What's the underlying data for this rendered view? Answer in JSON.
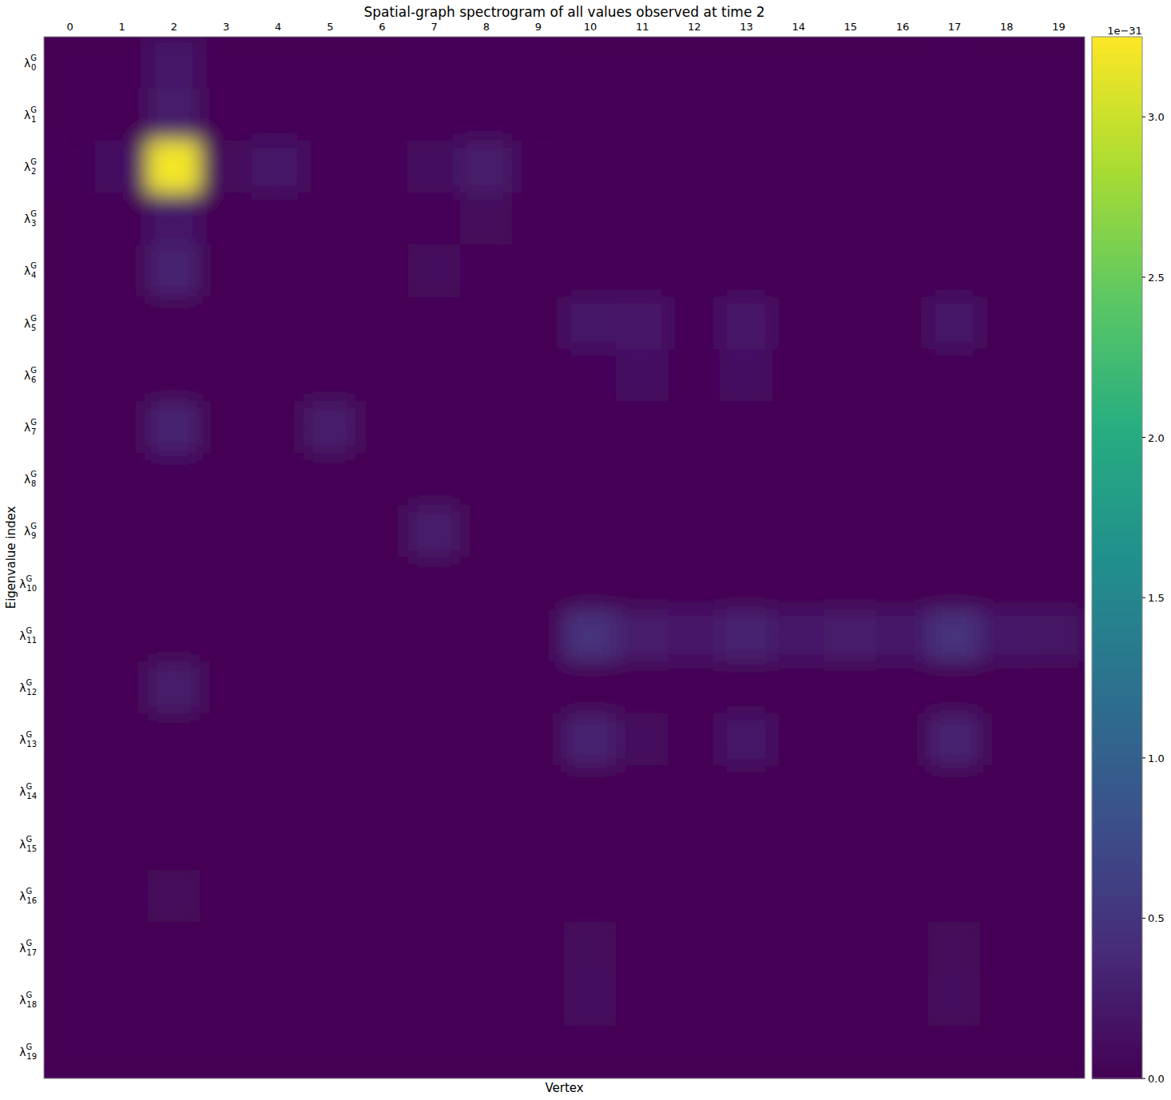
{
  "chart_data": {
    "type": "heatmap",
    "title": "Spatial-graph spectrogram of all values observed at time 2",
    "x_label": "Vertex",
    "y_label": "Eigenvalue index",
    "categories": [
      0,
      1,
      2,
      3,
      4,
      5,
      6,
      7,
      8,
      9,
      10,
      11,
      12,
      13,
      14,
      15,
      16,
      17,
      18,
      19
    ],
    "y_categories": [
      {
        "label": "λ",
        "sub": "0",
        "sup": "G"
      },
      {
        "label": "λ",
        "sub": "1",
        "sup": "G"
      },
      {
        "label": "λ",
        "sub": "2",
        "sup": "G"
      },
      {
        "label": "λ",
        "sub": "3",
        "sup": "G"
      },
      {
        "label": "λ",
        "sub": "4",
        "sup": "G"
      },
      {
        "label": "λ",
        "sub": "5",
        "sup": "G"
      },
      {
        "label": "λ",
        "sub": "6",
        "sup": "G"
      },
      {
        "label": "λ",
        "sub": "7",
        "sup": "G"
      },
      {
        "label": "λ",
        "sub": "8",
        "sup": "G"
      },
      {
        "label": "λ",
        "sub": "9",
        "sup": "G"
      },
      {
        "label": "λ",
        "sub": "10",
        "sup": "G"
      },
      {
        "label": "λ",
        "sub": "11",
        "sup": "G"
      },
      {
        "label": "λ",
        "sub": "12",
        "sup": "G"
      },
      {
        "label": "λ",
        "sub": "13",
        "sup": "G"
      },
      {
        "label": "λ",
        "sub": "14",
        "sup": "G"
      },
      {
        "label": "λ",
        "sub": "15",
        "sup": "G"
      },
      {
        "label": "λ",
        "sub": "16",
        "sup": "G"
      },
      {
        "label": "λ",
        "sub": "17",
        "sup": "G"
      },
      {
        "label": "λ",
        "sub": "18",
        "sup": "G"
      },
      {
        "label": "λ",
        "sub": "19",
        "sup": "G"
      }
    ],
    "values": [
      [
        0.01,
        0.01,
        0.2,
        0.01,
        0.01,
        0.01,
        0.01,
        0.02,
        0.02,
        0.03,
        0.01,
        0.01,
        0.01,
        0.01,
        0.01,
        0.01,
        0.01,
        0.02,
        0.01,
        0.01
      ],
      [
        0.01,
        0.01,
        0.25,
        0.01,
        0.01,
        0.01,
        0.01,
        0.02,
        0.02,
        0.02,
        0.01,
        0.01,
        0.01,
        0.01,
        0.01,
        0.01,
        0.01,
        0.02,
        0.01,
        0.01
      ],
      [
        0.05,
        0.15,
        3.2,
        0.08,
        0.2,
        0.03,
        0.02,
        0.12,
        0.25,
        0.04,
        0.01,
        0.01,
        0.01,
        0.01,
        0.01,
        0.01,
        0.01,
        0.01,
        0.01,
        0.01
      ],
      [
        0.01,
        0.01,
        0.2,
        0.01,
        0.02,
        0.01,
        0.01,
        0.02,
        0.08,
        0.01,
        0.01,
        0.01,
        0.01,
        0.01,
        0.01,
        0.01,
        0.01,
        0.01,
        0.01,
        0.01
      ],
      [
        0.01,
        0.01,
        0.3,
        0.01,
        0.01,
        0.01,
        0.01,
        0.1,
        0.02,
        0.01,
        0.01,
        0.01,
        0.01,
        0.01,
        0.01,
        0.01,
        0.01,
        0.01,
        0.01,
        0.01
      ],
      [
        0.01,
        0.01,
        0.01,
        0.01,
        0.01,
        0.01,
        0.01,
        0.01,
        0.01,
        0.01,
        0.2,
        0.22,
        0.05,
        0.22,
        0.01,
        0.01,
        0.01,
        0.2,
        0.01,
        0.01
      ],
      [
        0.01,
        0.01,
        0.01,
        0.01,
        0.01,
        0.01,
        0.01,
        0.01,
        0.01,
        0.01,
        0.05,
        0.15,
        0.02,
        0.15,
        0.01,
        0.01,
        0.01,
        0.01,
        0.01,
        0.01
      ],
      [
        0.01,
        0.01,
        0.3,
        0.01,
        0.01,
        0.25,
        0.01,
        0.01,
        0.01,
        0.01,
        0.01,
        0.01,
        0.01,
        0.01,
        0.01,
        0.01,
        0.01,
        0.01,
        0.01,
        0.01
      ],
      [
        0.01,
        0.01,
        0.05,
        0.01,
        0.01,
        0.01,
        0.01,
        0.01,
        0.01,
        0.01,
        0.01,
        0.01,
        0.01,
        0.01,
        0.01,
        0.01,
        0.01,
        0.01,
        0.01,
        0.01
      ],
      [
        0.01,
        0.01,
        0.01,
        0.01,
        0.01,
        0.01,
        0.01,
        0.25,
        0.01,
        0.01,
        0.01,
        0.01,
        0.01,
        0.01,
        0.01,
        0.01,
        0.01,
        0.01,
        0.01,
        0.01
      ],
      [
        0.01,
        0.01,
        0.01,
        0.01,
        0.01,
        0.01,
        0.01,
        0.01,
        0.01,
        0.01,
        0.01,
        0.01,
        0.01,
        0.01,
        0.01,
        0.01,
        0.01,
        0.01,
        0.01,
        0.01
      ],
      [
        0.01,
        0.01,
        0.01,
        0.01,
        0.01,
        0.01,
        0.01,
        0.01,
        0.01,
        0.03,
        0.45,
        0.25,
        0.22,
        0.3,
        0.2,
        0.25,
        0.2,
        0.45,
        0.2,
        0.18
      ],
      [
        0.01,
        0.01,
        0.25,
        0.01,
        0.01,
        0.01,
        0.01,
        0.01,
        0.01,
        0.05,
        0.01,
        0.01,
        0.01,
        0.01,
        0.01,
        0.01,
        0.01,
        0.01,
        0.01,
        0.01
      ],
      [
        0.01,
        0.01,
        0.01,
        0.01,
        0.01,
        0.01,
        0.01,
        0.01,
        0.01,
        0.01,
        0.3,
        0.1,
        0.02,
        0.2,
        0.01,
        0.01,
        0.01,
        0.3,
        0.01,
        0.01
      ],
      [
        0.01,
        0.01,
        0.01,
        0.01,
        0.01,
        0.01,
        0.01,
        0.01,
        0.01,
        0.01,
        0.01,
        0.01,
        0.01,
        0.01,
        0.01,
        0.01,
        0.01,
        0.01,
        0.01,
        0.01
      ],
      [
        0.01,
        0.01,
        0.01,
        0.01,
        0.01,
        0.01,
        0.01,
        0.01,
        0.01,
        0.01,
        0.01,
        0.01,
        0.01,
        0.01,
        0.01,
        0.01,
        0.01,
        0.01,
        0.01,
        0.01
      ],
      [
        0.01,
        0.01,
        0.08,
        0.01,
        0.01,
        0.01,
        0.01,
        0.01,
        0.01,
        0.01,
        0.01,
        0.01,
        0.01,
        0.01,
        0.01,
        0.01,
        0.01,
        0.01,
        0.01,
        0.01
      ],
      [
        0.01,
        0.01,
        0.01,
        0.01,
        0.01,
        0.01,
        0.01,
        0.01,
        0.01,
        0.01,
        0.1,
        0.01,
        0.01,
        0.01,
        0.01,
        0.01,
        0.01,
        0.08,
        0.01,
        0.01
      ],
      [
        0.01,
        0.01,
        0.01,
        0.01,
        0.01,
        0.01,
        0.01,
        0.01,
        0.01,
        0.01,
        0.12,
        0.01,
        0.01,
        0.01,
        0.01,
        0.01,
        0.01,
        0.1,
        0.01,
        0.01
      ],
      [
        0,
        0,
        0,
        0,
        0,
        0,
        0,
        0,
        0,
        0,
        0,
        0,
        0,
        0,
        0,
        0,
        0,
        0,
        0,
        0
      ]
    ],
    "colorbar_lim": [
      0,
      3.25
    ],
    "colorbar_ticks": [
      {
        "value": 0,
        "label": "0.0"
      },
      0.5,
      {
        "value": 1,
        "label": "1.0"
      },
      1.5,
      {
        "value": 2,
        "label": "2.0"
      },
      2.5,
      {
        "value": 3,
        "label": "3.0"
      }
    ],
    "colorbar_offset_label": "1e−31"
  }
}
